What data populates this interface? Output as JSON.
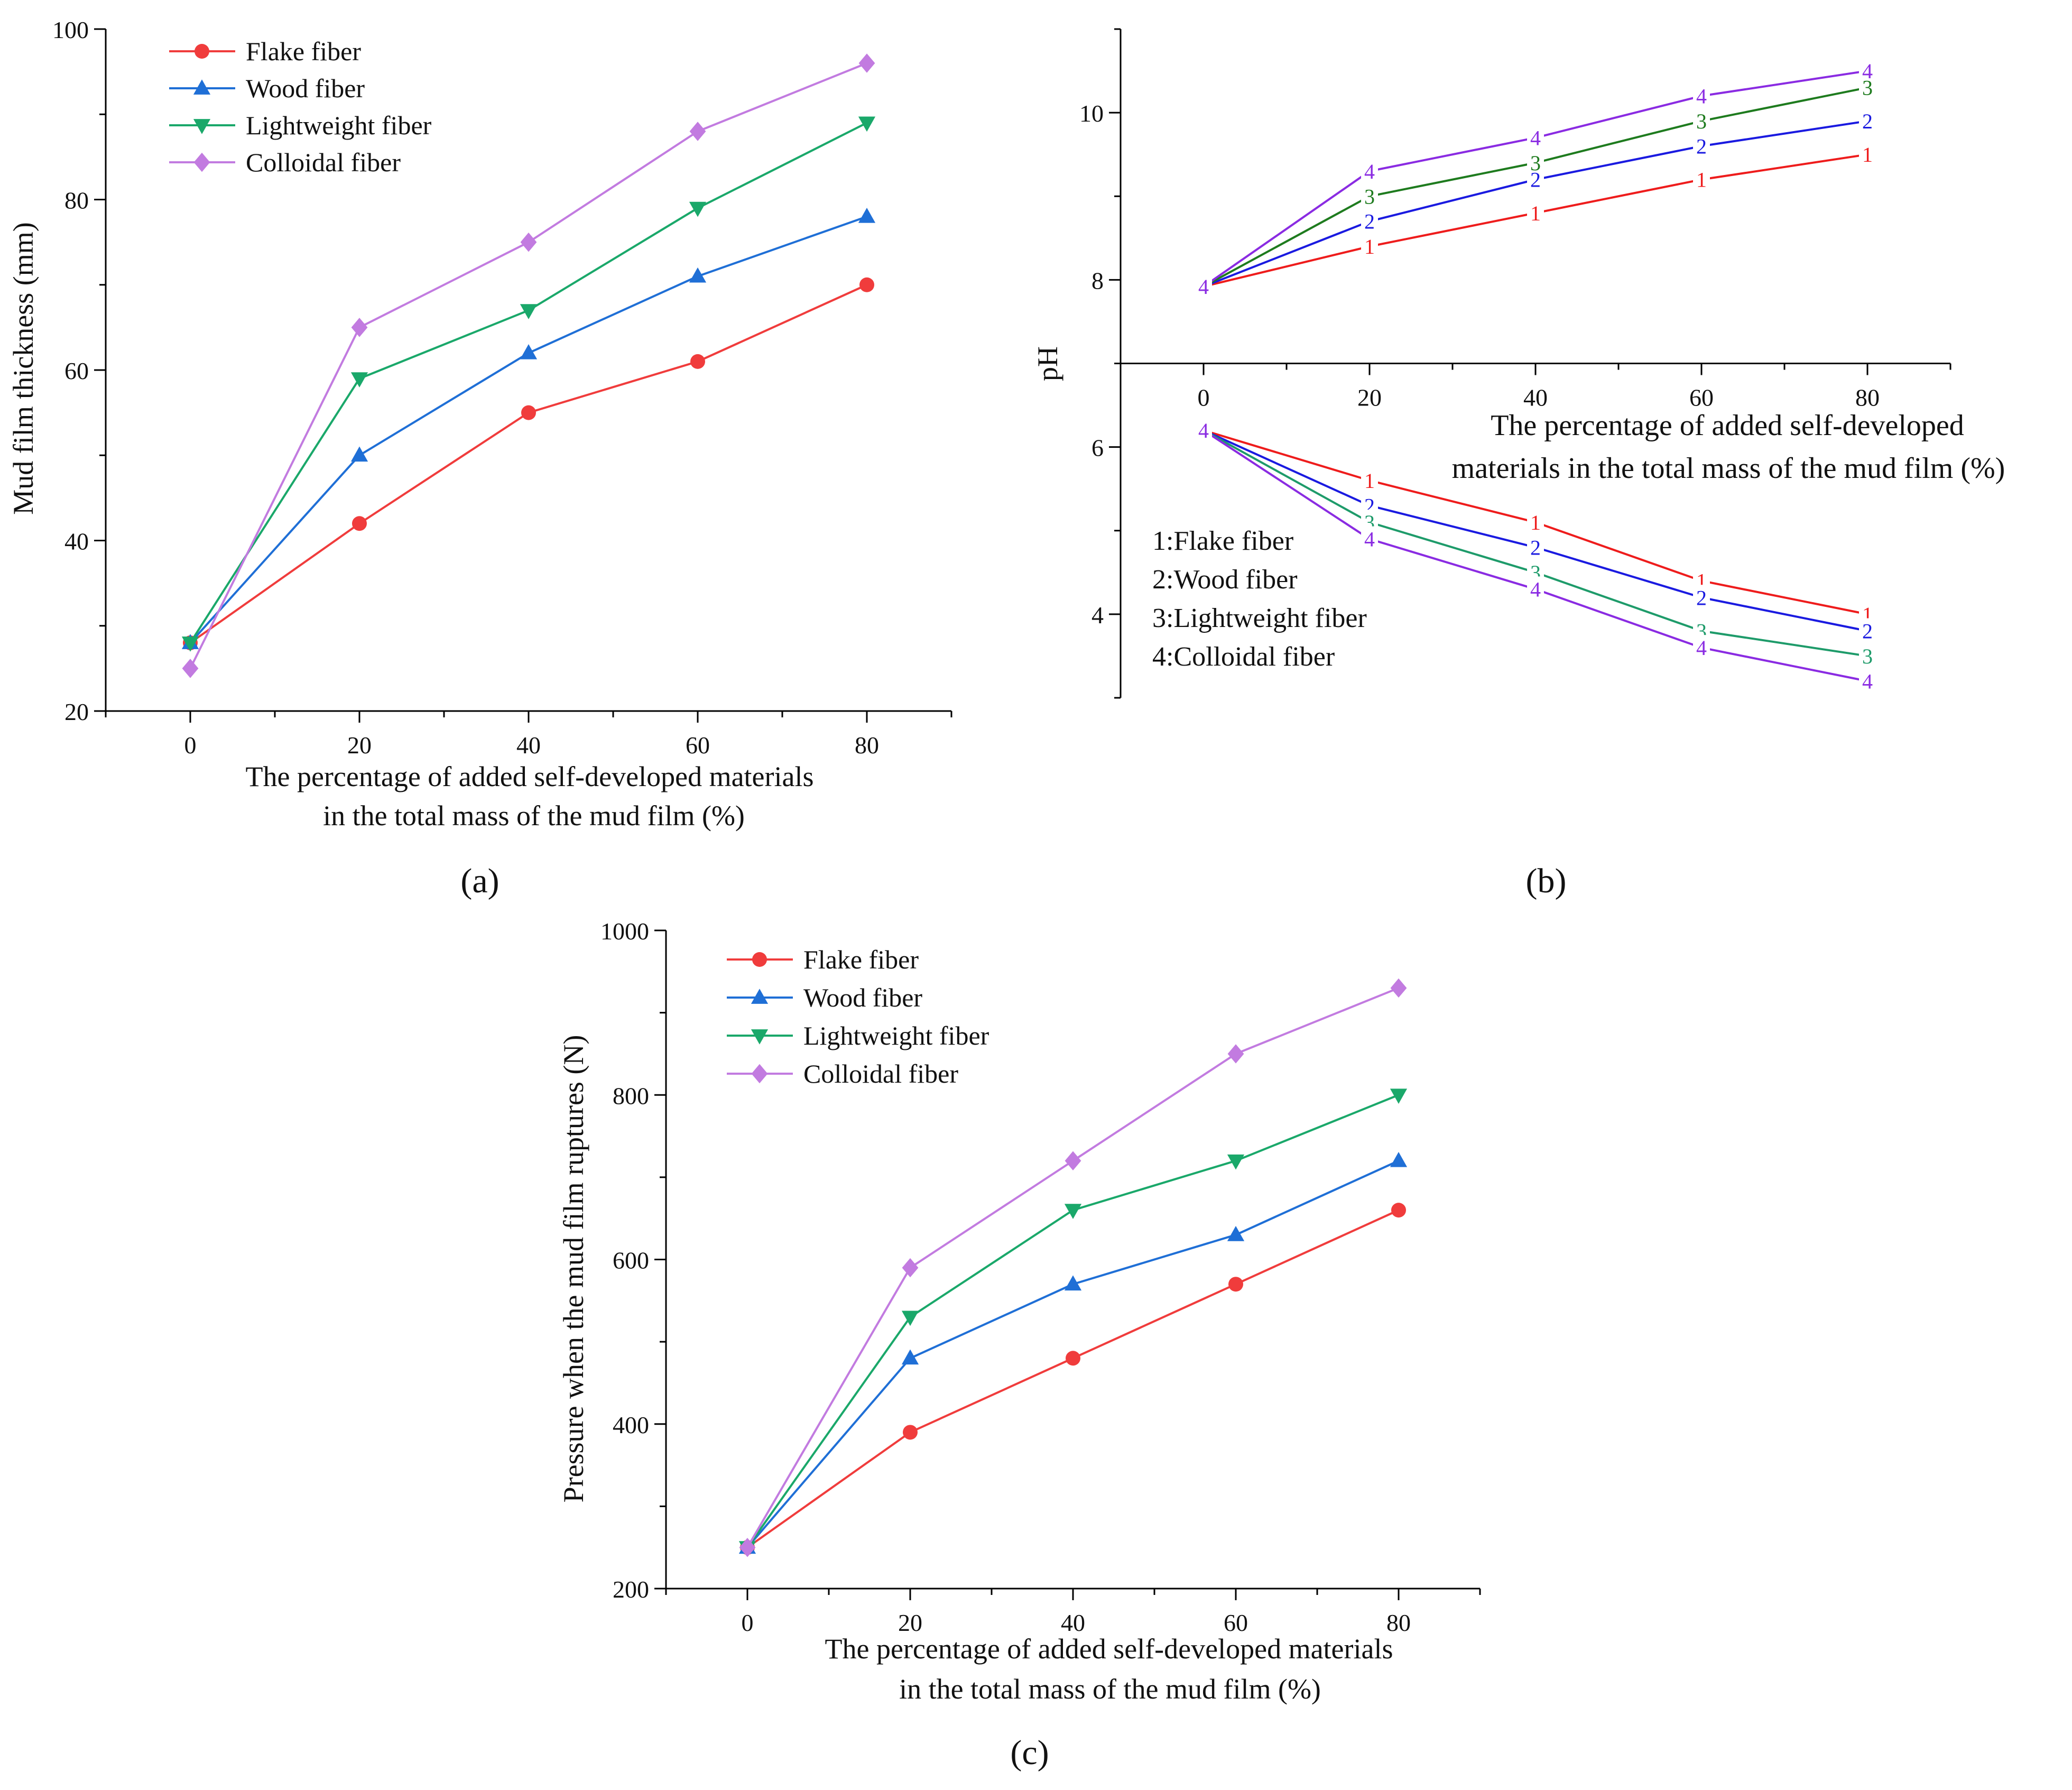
{
  "figure": {
    "panel_labels": {
      "a": "(a)",
      "b": "(b)",
      "c": "(c)"
    }
  },
  "chart_data": [
    {
      "id": "a",
      "type": "line",
      "title": "",
      "xlabel": [
        "The percentage of added self-developed materials",
        "in the total mass of the mud film (%)"
      ],
      "ylabel": "Mud film thickness (mm)",
      "x": [
        0,
        20,
        40,
        60,
        80
      ],
      "xlim": [
        -10,
        90
      ],
      "ylim": [
        20,
        100
      ],
      "xticks": [
        0,
        20,
        40,
        60,
        80
      ],
      "yticks": [
        20,
        40,
        60,
        80,
        100
      ],
      "legend_position": "top-left",
      "series": [
        {
          "name": "Flake fiber",
          "color": "#f03c3c",
          "marker": "circle",
          "values": [
            28,
            42,
            55,
            61,
            70
          ]
        },
        {
          "name": "Wood fiber",
          "color": "#1f6fd6",
          "marker": "triangle-up",
          "values": [
            28,
            50,
            62,
            71,
            78
          ]
        },
        {
          "name": "Lightweight fiber",
          "color": "#1aa86a",
          "marker": "triangle-down",
          "values": [
            28,
            59,
            67,
            79,
            89
          ]
        },
        {
          "name": "Colloidal fiber",
          "color": "#c27be0",
          "marker": "diamond",
          "values": [
            25,
            65,
            75,
            88,
            96
          ]
        }
      ]
    },
    {
      "id": "b",
      "type": "line",
      "title": "",
      "xlabel": [
        "The percentage of added self-developed",
        "materials in the total mass of the mud film (%)"
      ],
      "ylabel": "pH",
      "x": [
        0,
        20,
        40,
        60,
        80
      ],
      "xlim": [
        -10,
        90
      ],
      "ylim": [
        3,
        11
      ],
      "xticks": [
        0,
        20,
        40,
        60,
        80
      ],
      "yticks": [
        4,
        6,
        8,
        10
      ],
      "x_axis_at": 7,
      "legend_position": "bottom-left",
      "legend": [
        "1:Flake fiber",
        "2:Wood fiber",
        "3:Lightweight fiber",
        "4:Colloidal fiber"
      ],
      "series": [
        {
          "name": "1",
          "color": "#ee1c1c",
          "group": "upper",
          "values": [
            7.92,
            8.4,
            8.8,
            9.2,
            9.5
          ]
        },
        {
          "name": "2",
          "color": "#1a1ae0",
          "group": "upper",
          "values": [
            7.92,
            8.7,
            9.2,
            9.6,
            9.9
          ]
        },
        {
          "name": "3",
          "color": "#1e7b1e",
          "group": "upper",
          "values": [
            7.92,
            9.0,
            9.4,
            9.9,
            10.3
          ]
        },
        {
          "name": "4",
          "color": "#8a2be2",
          "group": "upper",
          "values": [
            7.92,
            9.3,
            9.7,
            10.2,
            10.5
          ]
        },
        {
          "name": "1",
          "color": "#ee1c1c",
          "group": "lower",
          "values": [
            6.2,
            5.6,
            5.1,
            4.4,
            4.0
          ]
        },
        {
          "name": "2",
          "color": "#1a1ae0",
          "group": "lower",
          "values": [
            6.2,
            5.3,
            4.8,
            4.2,
            3.8
          ]
        },
        {
          "name": "3",
          "color": "#1e9b6a",
          "group": "lower",
          "values": [
            6.2,
            5.1,
            4.5,
            3.8,
            3.5
          ]
        },
        {
          "name": "4",
          "color": "#8a2be2",
          "group": "lower",
          "values": [
            6.2,
            4.9,
            4.3,
            3.6,
            3.2
          ]
        }
      ]
    },
    {
      "id": "c",
      "type": "line",
      "title": "",
      "xlabel": [
        "The percentage of added self-developed materials",
        "in the total mass of the mud film (%)"
      ],
      "ylabel": "Pressure when the mud film ruptures (N)",
      "x": [
        0,
        20,
        40,
        60,
        80
      ],
      "xlim": [
        -10,
        90
      ],
      "ylim": [
        200,
        1000
      ],
      "xticks": [
        0,
        20,
        40,
        60,
        80
      ],
      "yticks": [
        200,
        400,
        600,
        800,
        1000
      ],
      "legend_position": "top-left",
      "series": [
        {
          "name": "Flake fiber",
          "color": "#f03c3c",
          "marker": "circle",
          "values": [
            250,
            390,
            480,
            570,
            660
          ]
        },
        {
          "name": "Wood fiber",
          "color": "#1f6fd6",
          "marker": "triangle-up",
          "values": [
            250,
            480,
            570,
            630,
            720
          ]
        },
        {
          "name": "Lightweight fiber",
          "color": "#1aa86a",
          "marker": "triangle-down",
          "values": [
            250,
            530,
            660,
            720,
            800
          ]
        },
        {
          "name": "Colloidal fiber",
          "color": "#c27be0",
          "marker": "diamond",
          "values": [
            250,
            590,
            720,
            850,
            930
          ]
        }
      ]
    }
  ]
}
